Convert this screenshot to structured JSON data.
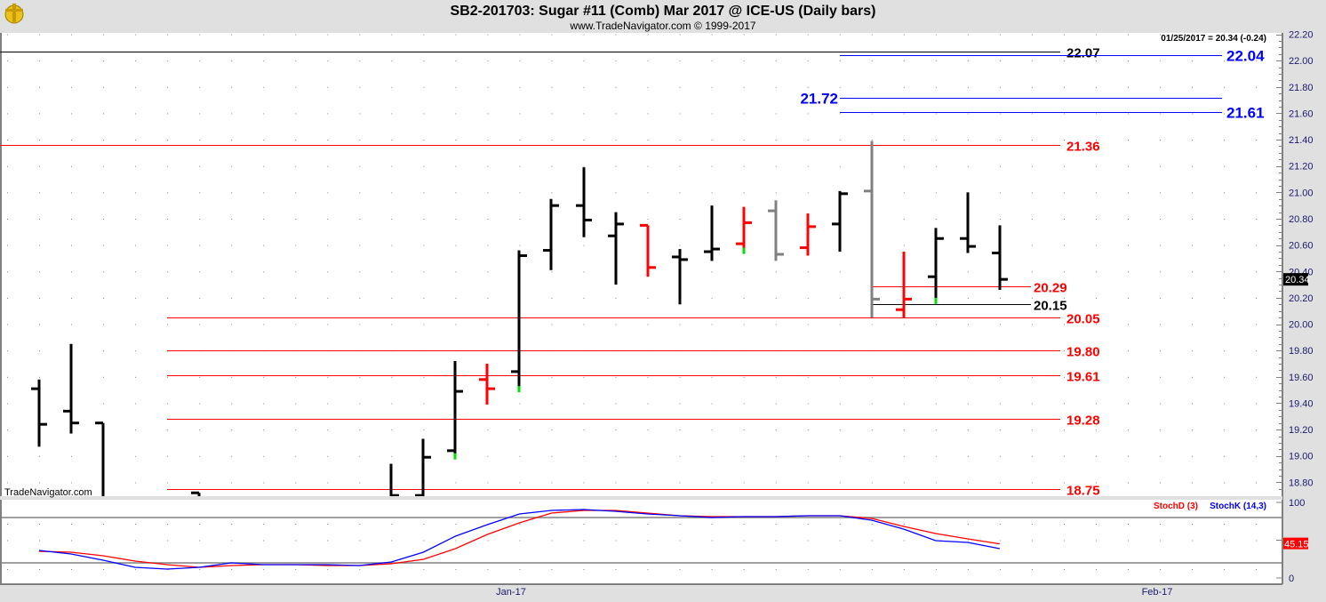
{
  "header": {
    "title": "SB2-201703:  Sugar #11 (Comb) Mar 2017 @ ICE-US  (Daily bars)",
    "subtitle": "www.TradeNavigator.com © 1999-2017",
    "last_quote": "01/25/2017 = 20.34 (-0.24)",
    "watermark": "TradeNavigator.com"
  },
  "colors": {
    "up": "#000000",
    "down": "#ff0000",
    "neutral": "#808080",
    "mark": "#00dd00",
    "blue": "#0000ff",
    "axis_text": "#1a1a6e"
  },
  "chart_data": [
    {
      "type": "ohlc",
      "title": "SB2-201703: Sugar #11 (Comb) Mar 2017 @ ICE-US (Daily bars)",
      "ylim": [
        18.75,
        22.2
      ],
      "y_ticks": [
        "22.20",
        "22.00",
        "21.80",
        "21.60",
        "21.40",
        "21.20",
        "21.00",
        "20.80",
        "20.60",
        "20.40",
        "20.20",
        "20.00",
        "19.80",
        "19.60",
        "19.40",
        "19.20",
        "19.00",
        "18.80"
      ],
      "x_ticks": [
        {
          "label": "Jan-17",
          "slot": 15
        },
        {
          "label": "Feb-17",
          "slot": 35
        }
      ],
      "last_price_tag": "20.34",
      "bars": [
        {
          "slot": 0,
          "o": 19.51,
          "h": 19.58,
          "l": 19.07,
          "c": 19.24,
          "color": "up"
        },
        {
          "slot": 1,
          "o": 19.34,
          "h": 19.85,
          "l": 19.17,
          "c": 19.25,
          "color": "up"
        },
        {
          "slot": 2,
          "o": 19.25,
          "h": 19.25,
          "l": 18.55,
          "c": 18.6,
          "color": "up"
        },
        {
          "slot": 5,
          "o": 18.72,
          "h": 18.72,
          "l": 18.4,
          "c": 18.5,
          "color": "up"
        },
        {
          "slot": 11,
          "o": 18.6,
          "h": 18.94,
          "l": 18.5,
          "c": 18.7,
          "color": "up"
        },
        {
          "slot": 12,
          "o": 18.7,
          "h": 19.13,
          "l": 18.6,
          "c": 18.99,
          "color": "up"
        },
        {
          "slot": 13,
          "o": 19.04,
          "h": 19.72,
          "l": 19.0,
          "c": 19.49,
          "color": "up",
          "mark": true
        },
        {
          "slot": 14,
          "o": 19.58,
          "h": 19.7,
          "l": 19.39,
          "c": 19.51,
          "color": "down"
        },
        {
          "slot": 15,
          "o": 19.64,
          "h": 20.56,
          "l": 19.51,
          "c": 20.52,
          "color": "up",
          "mark": true
        },
        {
          "slot": 16,
          "o": 20.56,
          "h": 20.95,
          "l": 20.41,
          "c": 20.9,
          "color": "up"
        },
        {
          "slot": 17,
          "o": 20.9,
          "h": 21.19,
          "l": 20.66,
          "c": 20.79,
          "color": "up"
        },
        {
          "slot": 18,
          "o": 20.67,
          "h": 20.85,
          "l": 20.3,
          "c": 20.76,
          "color": "up"
        },
        {
          "slot": 19,
          "o": 20.75,
          "h": 20.75,
          "l": 20.36,
          "c": 20.43,
          "color": "down"
        },
        {
          "slot": 20,
          "o": 20.51,
          "h": 20.57,
          "l": 20.15,
          "c": 20.49,
          "color": "up"
        },
        {
          "slot": 21,
          "o": 20.55,
          "h": 20.9,
          "l": 20.48,
          "c": 20.57,
          "color": "up"
        },
        {
          "slot": 22,
          "o": 20.61,
          "h": 20.89,
          "l": 20.56,
          "c": 20.77,
          "color": "down",
          "mark": true
        },
        {
          "slot": 23,
          "o": 20.86,
          "h": 20.94,
          "l": 20.48,
          "c": 20.53,
          "color": "neutral"
        },
        {
          "slot": 24,
          "o": 20.58,
          "h": 20.84,
          "l": 20.52,
          "c": 20.74,
          "color": "down"
        },
        {
          "slot": 25,
          "o": 20.76,
          "h": 21.01,
          "l": 20.55,
          "c": 20.99,
          "color": "up"
        },
        {
          "slot": 26,
          "o": 21.01,
          "h": 21.39,
          "l": 20.05,
          "c": 20.19,
          "color": "neutral"
        },
        {
          "slot": 27,
          "o": 20.11,
          "h": 20.55,
          "l": 20.05,
          "c": 20.19,
          "color": "down"
        },
        {
          "slot": 28,
          "o": 20.36,
          "h": 20.73,
          "l": 20.18,
          "c": 20.65,
          "color": "up",
          "mark": true
        },
        {
          "slot": 29,
          "o": 20.65,
          "h": 21.0,
          "l": 20.54,
          "c": 20.59,
          "color": "up"
        },
        {
          "slot": 30,
          "o": 20.54,
          "h": 20.75,
          "l": 20.26,
          "c": 20.34,
          "color": "up"
        }
      ],
      "levels": [
        {
          "value": 22.07,
          "label": "22.07",
          "color": "#000000"
        },
        {
          "value": 22.04,
          "label": "22.04",
          "color": "#0000ff"
        },
        {
          "value": 21.72,
          "label": "21.72",
          "color": "#0000ff"
        },
        {
          "value": 21.61,
          "label": "21.61",
          "color": "#0000ff"
        },
        {
          "value": 21.36,
          "label": "21.36",
          "color": "#ff0000"
        },
        {
          "value": 20.29,
          "label": "20.29",
          "color": "#ff0000"
        },
        {
          "value": 20.15,
          "label": "20.15",
          "color": "#000000"
        },
        {
          "value": 20.05,
          "label": "20.05",
          "color": "#ff0000"
        },
        {
          "value": 19.8,
          "label": "19.80",
          "color": "#ff0000"
        },
        {
          "value": 19.61,
          "label": "19.61",
          "color": "#ff0000"
        },
        {
          "value": 19.28,
          "label": "19.28",
          "color": "#ff0000"
        },
        {
          "value": 18.75,
          "label": "18.75",
          "color": "#ff0000"
        }
      ]
    },
    {
      "type": "line",
      "title": "Stochastic",
      "ylim": [
        0,
        100
      ],
      "y_ticks": [
        "100",
        "0"
      ],
      "reference_lines": [
        20,
        80
      ],
      "legend_position": "top-right",
      "slots": [
        0,
        1,
        2,
        3,
        4,
        5,
        6,
        7,
        8,
        9,
        10,
        11,
        12,
        13,
        14,
        15,
        16,
        17,
        18,
        19,
        20,
        21,
        22,
        23,
        24,
        25,
        26,
        27,
        28,
        29,
        30
      ],
      "series": [
        {
          "name": "StochD (3)",
          "color": "#ff0000",
          "tag": "45.15",
          "values": [
            35.3,
            34.1,
            29.4,
            22.4,
            17.6,
            14.1,
            16.5,
            17.6,
            17.6,
            16.5,
            16.5,
            18.8,
            24.7,
            38.8,
            57.6,
            72.9,
            85.9,
            89.4,
            89.4,
            85.9,
            82.4,
            81.2,
            81.2,
            81.2,
            82.4,
            82.4,
            78.8,
            68.2,
            58.8,
            51.8,
            45.15
          ]
        },
        {
          "name": "StochK (14,3)",
          "color": "#0000ff",
          "values": [
            36.5,
            31.8,
            23.5,
            14.1,
            11.8,
            14.1,
            20,
            17.6,
            17.6,
            17.6,
            16.5,
            21.2,
            34.1,
            55.3,
            70.6,
            84.7,
            89.4,
            90.6,
            88.2,
            84.7,
            82.4,
            80,
            81.2,
            81.2,
            82.4,
            82.4,
            76.5,
            64.7,
            49.4,
            47.1,
            38.8
          ]
        }
      ]
    }
  ]
}
